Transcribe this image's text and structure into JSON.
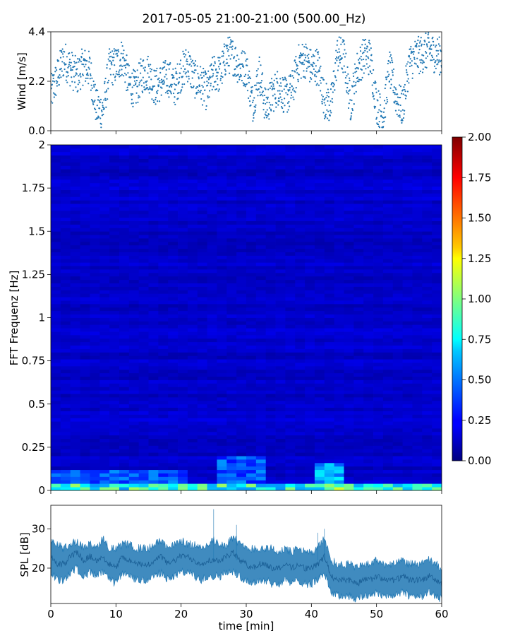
{
  "figure": {
    "title": "2017-05-05 21:00-21:00 (500.00_Hz)"
  },
  "chart_data": [
    {
      "type": "scatter",
      "panel": "wind",
      "title": "",
      "xlabel": "",
      "ylabel": "Wind [m/s]",
      "xlim": [
        0,
        60
      ],
      "ylim": [
        0,
        4.4
      ],
      "yticks": [
        "0.0",
        "2.2",
        "4.4"
      ],
      "marker_color": "#1f77b4",
      "series": [
        {
          "x": [
            0,
            1,
            2,
            3,
            4,
            5,
            6,
            7,
            8,
            9,
            10,
            11,
            12,
            13,
            14,
            15,
            16,
            17,
            18,
            19,
            20,
            21,
            22,
            23,
            24,
            25,
            26,
            27,
            28,
            29,
            30,
            31,
            32,
            33,
            34,
            35,
            36,
            37,
            38,
            39,
            40,
            41,
            42,
            43,
            44,
            45,
            46,
            47,
            48,
            49,
            50,
            51,
            52,
            53,
            54,
            55,
            56,
            57,
            58,
            59,
            60
          ],
          "y": [
            1.6,
            2.4,
            3.2,
            2.8,
            2.4,
            2.9,
            2.7,
            1.0,
            0.9,
            2.8,
            2.9,
            3.3,
            2.1,
            1.8,
            2.5,
            2.6,
            1.9,
            2.2,
            2.4,
            1.9,
            2.6,
            3.0,
            2.3,
            2.1,
            1.7,
            2.6,
            2.5,
            3.4,
            3.3,
            2.8,
            2.8,
            1.2,
            2.6,
            1.0,
            1.6,
            2.0,
            1.5,
            1.8,
            3.0,
            3.2,
            2.8,
            2.9,
            1.4,
            1.1,
            3.4,
            3.3,
            1.2,
            2.7,
            3.3,
            3.3,
            1.2,
            0.6,
            2.8,
            1.5,
            1.0,
            3.0,
            3.3,
            3.4,
            3.6,
            3.4,
            3.3
          ]
        }
      ]
    },
    {
      "type": "heatmap",
      "panel": "spectrogram",
      "title": "",
      "xlabel": "",
      "ylabel": "FFT Frequenz [Hz]",
      "xlim": [
        0,
        60
      ],
      "ylim": [
        0,
        2
      ],
      "yticks": [
        "0",
        "0.25",
        "0.5",
        "0.75",
        "1",
        "1.25",
        "1.5",
        "1.75",
        "2"
      ],
      "colormap": "jet",
      "colorbar": {
        "vmin": 0,
        "vmax": 2,
        "ticks": [
          "0.00",
          "0.25",
          "0.50",
          "0.75",
          "1.00",
          "1.25",
          "1.50",
          "1.75",
          "2.00"
        ]
      },
      "background_level": 0.15,
      "hotspots": [
        {
          "x": [
            0,
            60
          ],
          "y": [
            0,
            0.04
          ],
          "value": 0.9
        },
        {
          "x": [
            0,
            20
          ],
          "y": [
            0,
            0.12
          ],
          "value": 0.45
        },
        {
          "x": [
            26,
            32
          ],
          "y": [
            0,
            0.2
          ],
          "value": 0.45
        },
        {
          "x": [
            41,
            44
          ],
          "y": [
            0,
            0.16
          ],
          "value": 0.7
        },
        {
          "x": [
            43,
            44
          ],
          "y": [
            0,
            0.04
          ],
          "value": 1.1
        }
      ]
    },
    {
      "type": "line",
      "panel": "spl",
      "title": "",
      "xlabel": "time [min]",
      "ylabel": "SPL [dB]",
      "xlim": [
        0,
        60
      ],
      "ylim": [
        11,
        36
      ],
      "xticks": [
        "0",
        "10",
        "20",
        "30",
        "40",
        "50",
        "60"
      ],
      "yticks": [
        "20",
        "30"
      ],
      "line_color": "#1f77b4",
      "series": [
        {
          "x": [
            0,
            1,
            2,
            3,
            4,
            5,
            6,
            7,
            8,
            9,
            10,
            11,
            12,
            13,
            14,
            15,
            16,
            17,
            18,
            19,
            20,
            21,
            22,
            23,
            24,
            25,
            26,
            27,
            28,
            29,
            30,
            31,
            32,
            33,
            34,
            35,
            36,
            37,
            38,
            39,
            40,
            41,
            42,
            43,
            44,
            45,
            46,
            47,
            48,
            49,
            50,
            51,
            52,
            53,
            54,
            55,
            56,
            57,
            58,
            59,
            60
          ],
          "y": [
            23,
            21,
            21,
            23,
            24,
            22,
            23,
            22,
            23,
            21,
            20,
            23,
            22,
            21,
            21,
            21,
            22,
            23,
            21,
            22,
            23,
            23,
            22,
            21,
            22,
            22,
            22,
            23,
            24,
            22,
            21,
            20,
            21,
            21,
            20,
            20,
            21,
            20,
            21,
            20,
            20,
            21,
            23,
            18,
            17,
            17,
            17,
            16,
            17,
            17,
            18,
            17,
            17,
            17,
            18,
            17,
            17,
            17,
            18,
            17,
            16
          ],
          "upper": [
            27,
            26,
            25,
            26,
            27,
            25,
            26,
            25,
            28,
            25,
            25,
            26,
            26,
            25,
            25,
            25,
            26,
            27,
            25,
            26,
            27,
            26,
            26,
            25,
            26,
            27,
            26,
            26,
            28,
            26,
            25,
            25,
            25,
            25,
            25,
            24,
            25,
            24,
            25,
            24,
            24,
            25,
            28,
            22,
            21,
            21,
            21,
            20,
            21,
            21,
            22,
            21,
            21,
            21,
            22,
            21,
            21,
            21,
            22,
            21,
            20
          ],
          "lower": [
            19,
            17,
            17,
            19,
            20,
            18,
            19,
            18,
            19,
            17,
            16,
            19,
            18,
            17,
            17,
            17,
            18,
            19,
            17,
            18,
            19,
            19,
            18,
            17,
            18,
            18,
            18,
            19,
            19,
            18,
            17,
            16,
            17,
            17,
            16,
            16,
            17,
            16,
            17,
            16,
            16,
            17,
            19,
            14,
            13,
            13,
            13,
            12,
            13,
            13,
            14,
            13,
            13,
            13,
            14,
            13,
            13,
            13,
            14,
            13,
            12
          ]
        }
      ]
    }
  ]
}
